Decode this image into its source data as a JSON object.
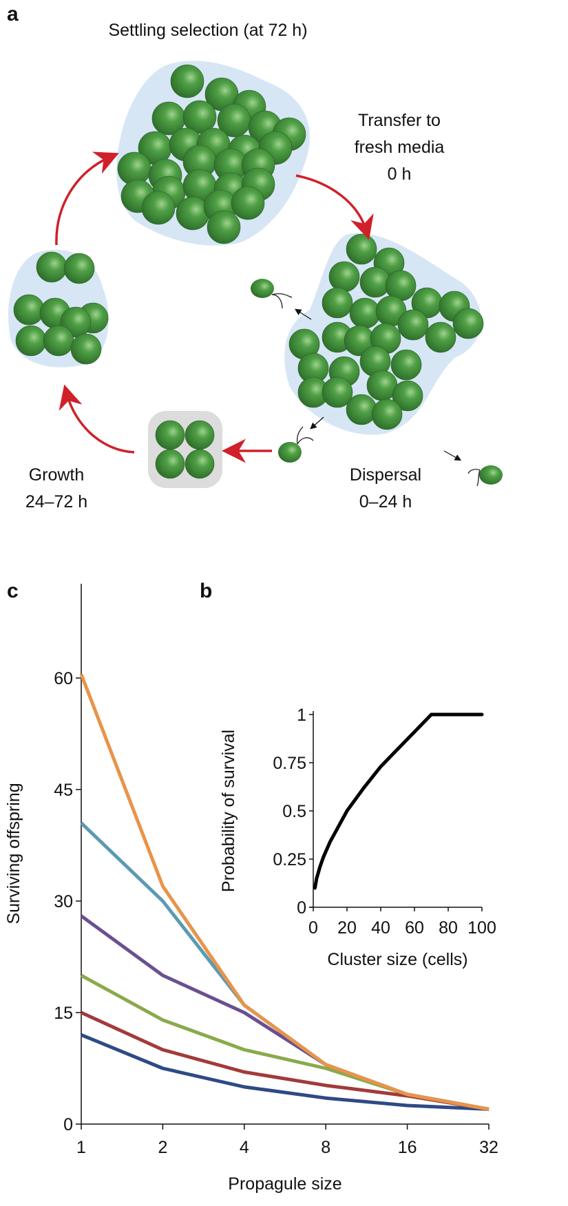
{
  "panel_labels": {
    "a": "a",
    "b": "b",
    "c": "c"
  },
  "diagram": {
    "title": "Settling selection (at 72 h)",
    "stages": {
      "transfer": [
        "Transfer to",
        "fresh media",
        "0 h"
      ],
      "dispersal": [
        "Dispersal",
        "0–24 h"
      ],
      "growth": [
        "Growth",
        "24–72 h"
      ]
    },
    "colors": {
      "cell": "#3f8f3a",
      "matrix": "#d6e6f5",
      "propagule_matrix": "#dcdcdc",
      "arrow": "#d0202a"
    }
  },
  "chart_data": [
    {
      "panel": "b",
      "type": "line",
      "xlabel": "Cluster size (cells)",
      "ylabel": "Probability of survival",
      "xlim": [
        0,
        100
      ],
      "ylim": [
        0,
        1
      ],
      "xticks": [
        "0",
        "20",
        "40",
        "60",
        "80",
        "100"
      ],
      "yticks": [
        "0",
        "0.25",
        "0.5",
        "0.75",
        "1"
      ],
      "series": [
        {
          "color": "#000000",
          "x": [
            1,
            2,
            4,
            6,
            8,
            10,
            15,
            20,
            25,
            30,
            40,
            50,
            60,
            70,
            80,
            90,
            100
          ],
          "y": [
            0.1,
            0.15,
            0.21,
            0.26,
            0.3,
            0.34,
            0.42,
            0.5,
            0.56,
            0.62,
            0.73,
            0.82,
            0.91,
            1.0,
            1.0,
            1.0,
            1.0
          ]
        }
      ]
    },
    {
      "panel": "c",
      "type": "line",
      "xlabel": "Propagule size",
      "ylabel": "Surviving offspring",
      "x_scale": "log2",
      "categories": [
        "1",
        "2",
        "4",
        "8",
        "16",
        "32"
      ],
      "x": [
        1,
        2,
        4,
        8,
        16,
        32
      ],
      "ylim": [
        0,
        65
      ],
      "yticks": [
        "0",
        "15",
        "30",
        "45",
        "60"
      ],
      "series": [
        {
          "color": "#e8944a",
          "values": [
            60.5,
            32,
            16,
            8,
            4,
            2
          ]
        },
        {
          "color": "#5b9ab3",
          "values": [
            40.5,
            30,
            16,
            8,
            4,
            2
          ]
        },
        {
          "color": "#6a4f92",
          "values": [
            28,
            20,
            15,
            8,
            4,
            2
          ]
        },
        {
          "color": "#8aaa4a",
          "values": [
            20,
            14,
            10,
            7.5,
            4,
            2
          ]
        },
        {
          "color": "#a33a3a",
          "values": [
            15,
            10,
            7,
            5.2,
            3.8,
            2
          ]
        },
        {
          "color": "#2e4a86",
          "values": [
            12,
            7.5,
            5,
            3.5,
            2.5,
            2
          ]
        }
      ]
    }
  ]
}
